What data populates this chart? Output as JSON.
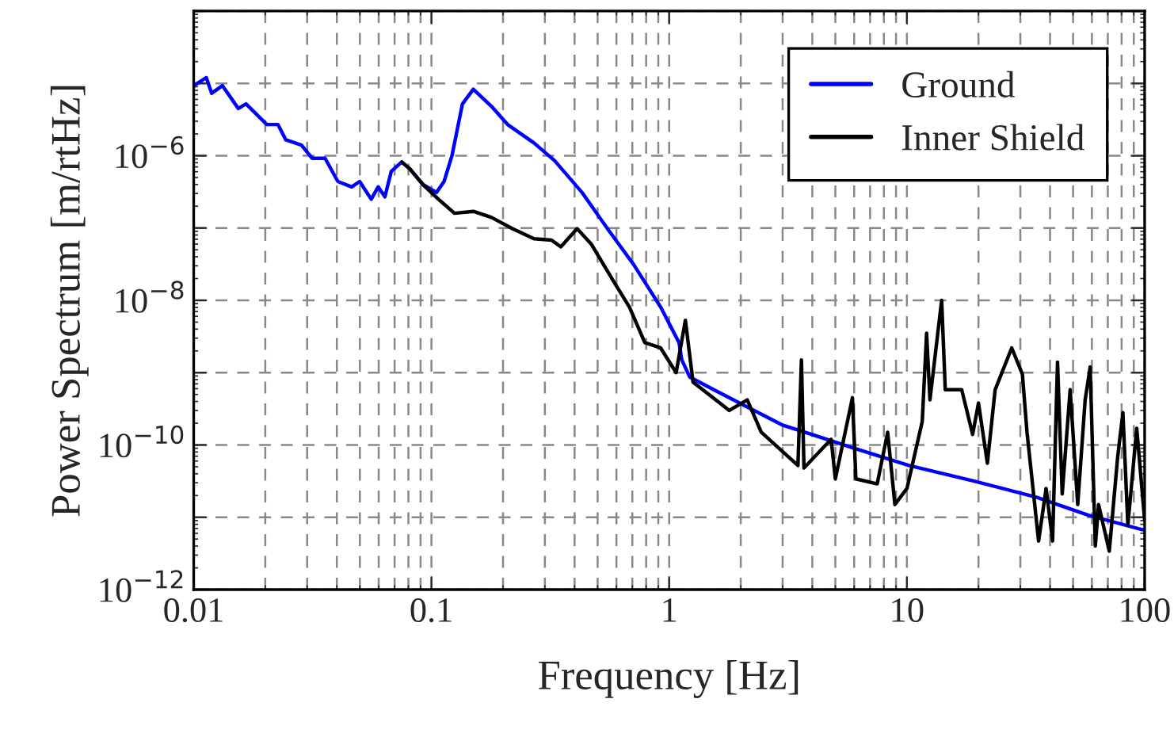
{
  "chart_data": {
    "type": "line",
    "xlabel": "Frequency [Hz]",
    "ylabel": "Power Spectrum [m/rtHz]",
    "log": "xy",
    "grid": true,
    "legend": "top right",
    "line_style": "solid",
    "marker": "none",
    "xlim": [
      0.01,
      100
    ],
    "xticks": [
      0.01,
      0.1,
      1,
      10,
      100
    ],
    "ylim": [
      1e-12,
      0.0001
    ],
    "yticks": [
      {
        "value": 1e-12,
        "label": "10$^{−12}$"
      },
      {
        "value": 1e-11,
        "label": null
      },
      {
        "value": 1e-10,
        "label": "10$^{−10}$"
      },
      {
        "value": 1e-09,
        "label": null
      },
      {
        "value": 1e-08,
        "label": "10$^{−8}$"
      },
      {
        "value": 1e-07,
        "label": null
      },
      {
        "value": 1e-06,
        "label": "10$^{−6}$"
      },
      {
        "value": 1e-05,
        "label": null
      },
      {
        "value": 0.0001,
        "label": null
      }
    ],
    "series": [
      {
        "name": "Ground",
        "color": "#0000ff",
        "x": [
          0.01,
          0.0113,
          0.0119,
          0.0132,
          0.0154,
          0.0166,
          0.0203,
          0.0226,
          0.0244,
          0.0284,
          0.0315,
          0.0357,
          0.0404,
          0.0462,
          0.0499,
          0.0558,
          0.0597,
          0.0637,
          0.0678,
          0.075,
          0.081,
          0.092,
          0.105,
          0.113,
          0.122,
          0.135,
          0.15,
          0.179,
          0.209,
          0.27,
          0.33,
          0.43,
          0.55,
          0.71,
          0.92,
          1.1,
          1.13,
          1.22,
          1.54,
          2.98,
          5.82,
          10.2,
          18.9,
          35,
          58,
          100
        ],
        "values": [
          9.3e-06,
          1.2e-05,
          7.3e-06,
          9.3e-06,
          4.5e-06,
          5.2e-06,
          2.7e-06,
          2.7e-06,
          1.66e-06,
          1.4e-06,
          9.2e-07,
          9.2e-07,
          4.4e-07,
          3.7e-07,
          4.4e-07,
          2.5e-07,
          3.7e-07,
          2.7e-07,
          6.1e-07,
          8.2e-07,
          6.6e-07,
          4e-07,
          3.1e-07,
          4.4e-07,
          1e-06,
          5.2e-06,
          8.3e-06,
          4.8e-06,
          2.7e-06,
          1.5e-06,
          8.5e-07,
          3.1e-07,
          9.8e-08,
          3.1e-08,
          8.1e-09,
          2.6e-09,
          1.5e-09,
          8.7e-10,
          5.8e-10,
          1.9e-10,
          9.3e-11,
          5.2e-11,
          3.2e-11,
          1.9e-11,
          1.07e-11,
          6.6e-12
        ]
      },
      {
        "name": "Inner Shield",
        "color": "#000000",
        "x": [
          0.075,
          0.081,
          0.092,
          0.107,
          0.125,
          0.15,
          0.179,
          0.219,
          0.27,
          0.32,
          0.35,
          0.41,
          0.47,
          0.58,
          0.68,
          0.79,
          0.92,
          1.07,
          1.17,
          1.26,
          1.79,
          2.13,
          2.44,
          3.48,
          3.6,
          3.69,
          4.8,
          5.0,
          5.9,
          6.1,
          7.5,
          8.3,
          8.9,
          10.0,
          11.6,
          12.1,
          12.5,
          14.0,
          14.5,
          17.0,
          18.9,
          20.0,
          21.8,
          23.5,
          27.6,
          30.6,
          32.0,
          35.8,
          38.5,
          41,
          43,
          45,
          48.6,
          52.3,
          56.2,
          59,
          62,
          64,
          71,
          77,
          81,
          85,
          92.6,
          100
        ],
        "values": [
          8.2e-07,
          6.6e-07,
          4e-07,
          2.5e-07,
          1.6e-07,
          1.7e-07,
          1.4e-07,
          9.8e-08,
          7.1e-08,
          6.8e-08,
          5.5e-08,
          9.8e-08,
          6e-08,
          1.9e-08,
          8.1e-09,
          2.6e-09,
          2.2e-09,
          1e-09,
          5.3e-09,
          7.4e-10,
          3e-10,
          4.2e-10,
          1.5e-10,
          5.2e-11,
          1.5e-09,
          4.8e-11,
          1.2e-10,
          3.4e-11,
          4.5e-10,
          3.4e-11,
          2.9e-11,
          1.5e-10,
          1.5e-11,
          2.5e-11,
          2.1e-10,
          3.5e-09,
          4.2e-10,
          1e-08,
          5.8e-10,
          5.8e-10,
          1.4e-10,
          3.8e-10,
          5.6e-11,
          5.8e-10,
          2.2e-09,
          9.5e-10,
          1.5e-10,
          4.7e-12,
          2.5e-11,
          4.7e-12,
          1.4e-09,
          2.1e-11,
          5.8e-10,
          1.5e-11,
          4.2e-10,
          1.2e-09,
          4e-12,
          1.5e-11,
          3.4e-12,
          6.8e-11,
          2.8e-10,
          7.8e-12,
          1.7e-10,
          9.1e-12
        ]
      }
    ]
  }
}
